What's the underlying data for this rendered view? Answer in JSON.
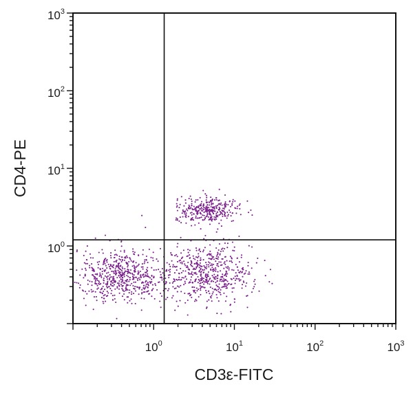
{
  "chart_data": {
    "type": "scatter",
    "title": "",
    "xlabel": "CD3ε-FITC",
    "ylabel": "CD4-PE",
    "x_scale": "log",
    "y_scale": "log",
    "xlim": [
      0.1,
      1000
    ],
    "ylim": [
      0.1,
      1000
    ],
    "x_ticks": [
      {
        "value": 1,
        "base": "10",
        "exp": "0"
      },
      {
        "value": 10,
        "base": "10",
        "exp": "1"
      },
      {
        "value": 100,
        "base": "10",
        "exp": "2"
      },
      {
        "value": 1000,
        "base": "10",
        "exp": "3"
      }
    ],
    "y_ticks": [
      {
        "value": 1,
        "base": "10",
        "exp": "0"
      },
      {
        "value": 10,
        "base": "10",
        "exp": "1"
      },
      {
        "value": 100,
        "base": "10",
        "exp": "2"
      },
      {
        "value": 1000,
        "base": "10",
        "exp": "3"
      }
    ],
    "quadrant_gates": {
      "x": 1.35,
      "y": 1.2
    },
    "grid": false,
    "legend": "none",
    "point_color": "#7a1f8c",
    "clusters": [
      {
        "center_x": 0.4,
        "center_y": 0.42,
        "spread_x": 0.3,
        "spread_y": 0.17,
        "count": 620
      },
      {
        "center_x": 4.8,
        "center_y": 0.44,
        "spread_x": 0.27,
        "spread_y": 0.19,
        "count": 560
      },
      {
        "center_x": 4.8,
        "center_y": 2.9,
        "spread_x": 0.2,
        "spread_y": 0.08,
        "count": 330
      }
    ]
  }
}
